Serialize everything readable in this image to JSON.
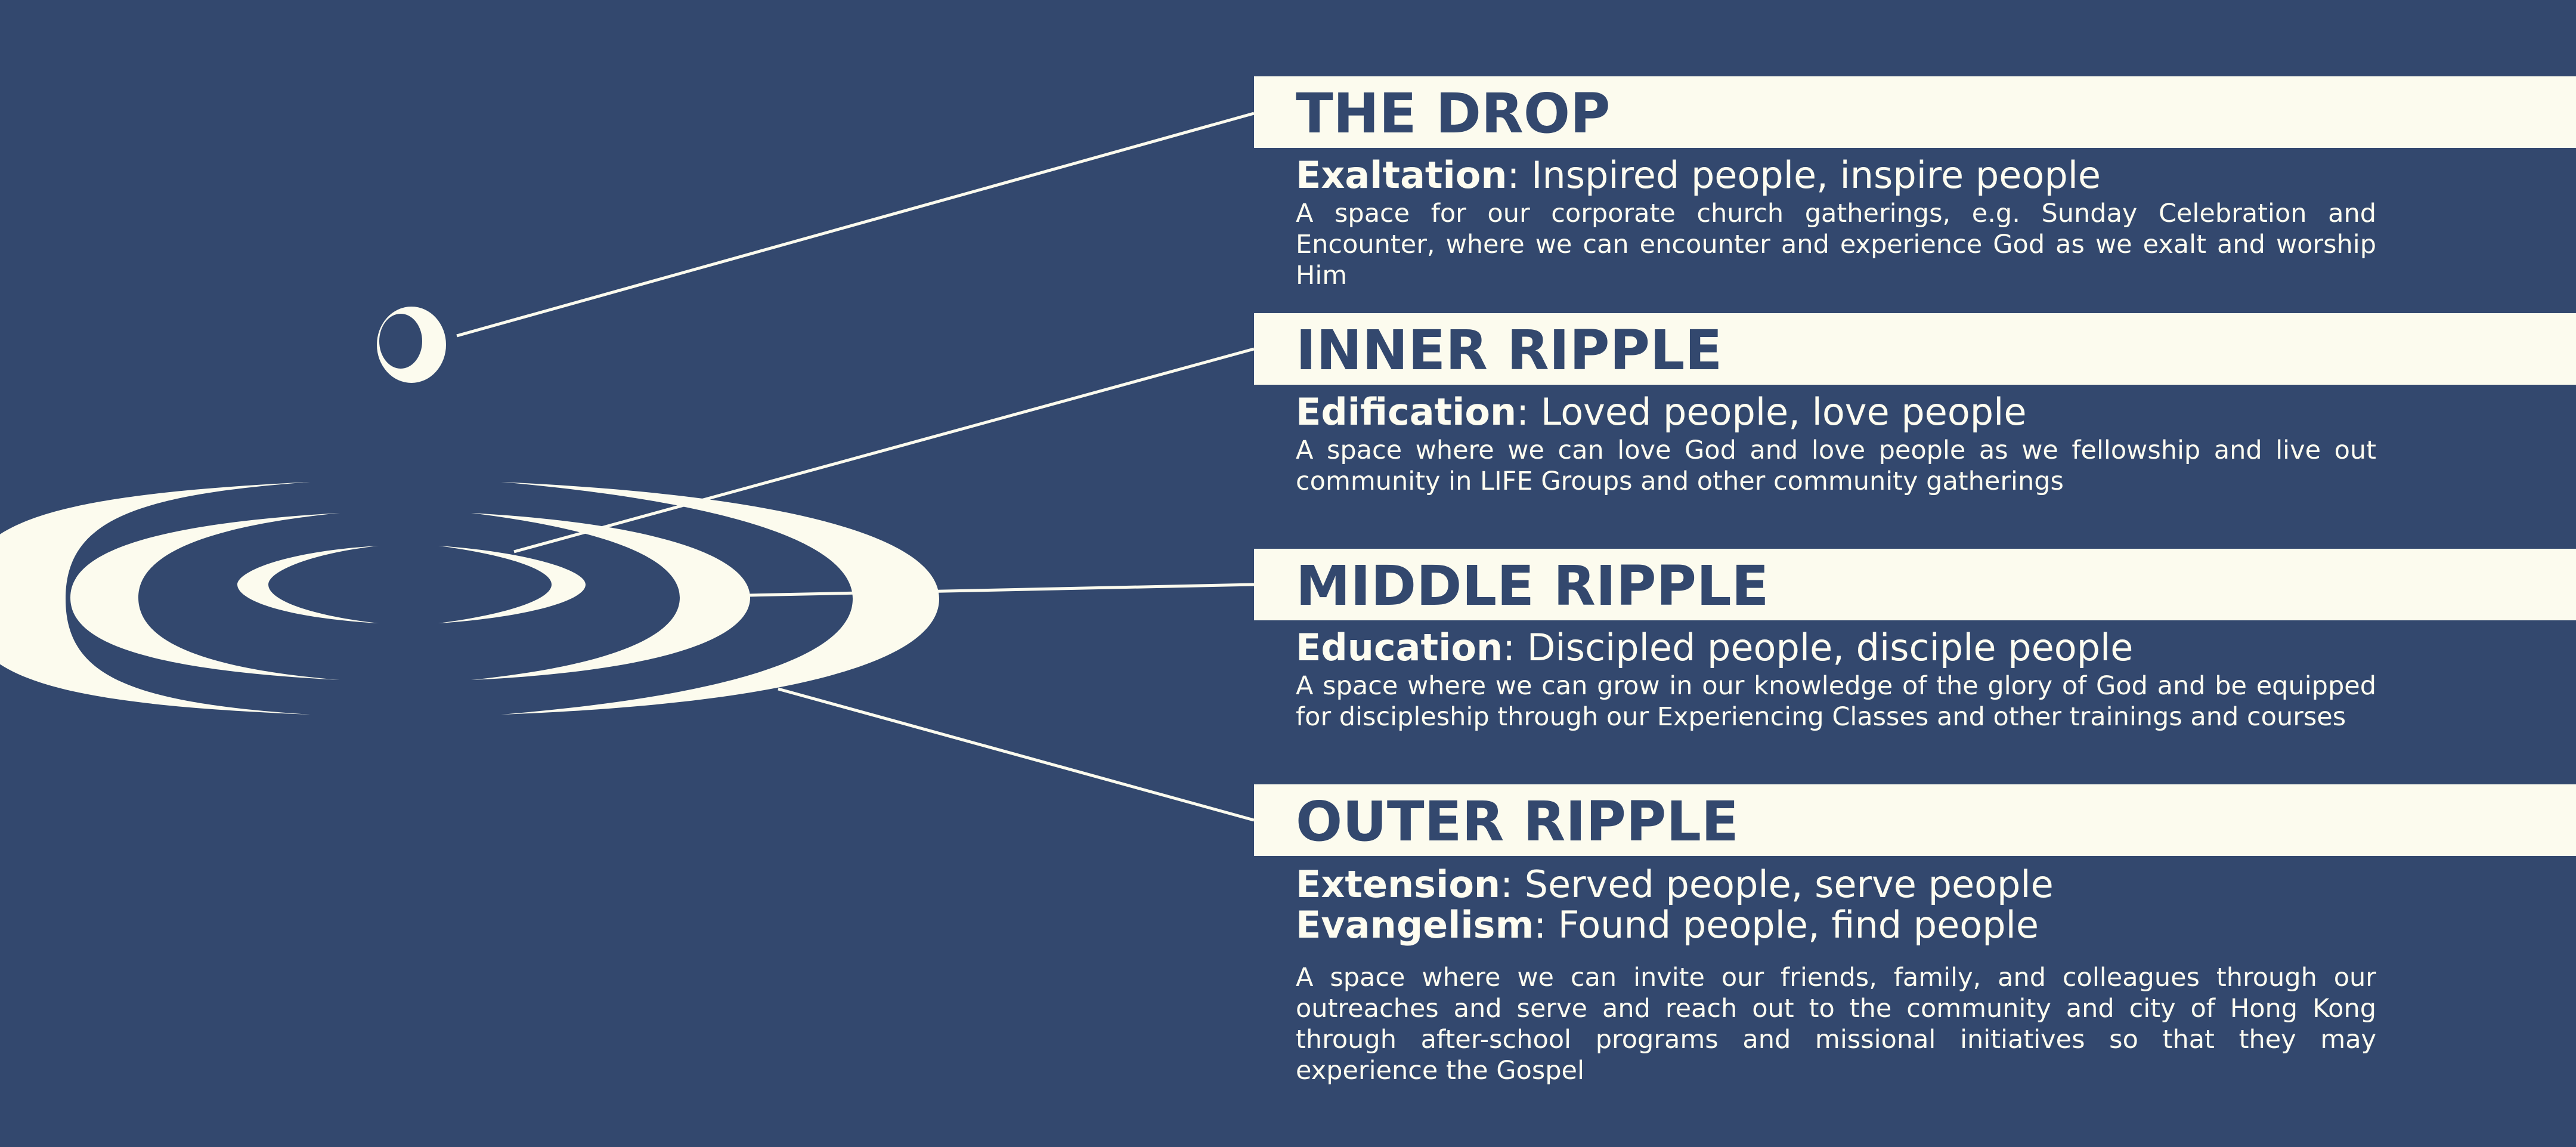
{
  "colors": {
    "background": "#33486e",
    "cream": "#fcfbee"
  },
  "sections": [
    {
      "title": "THE DROP",
      "mottos": [
        {
          "keyword": "Exaltation",
          "text": ": Inspired people, inspire people"
        }
      ],
      "description": "A space for our corporate church gatherings, e.g. Sunday Celebration and Encounter, where we can encounter and experience God as we exalt and worship Him"
    },
    {
      "title": "INNER RIPPLE",
      "mottos": [
        {
          "keyword": "Edification",
          "text": ": Loved people, love people"
        }
      ],
      "description": "A space where we can love God and love people as we fellowship and live out community in LIFE Groups and other community gatherings"
    },
    {
      "title": "MIDDLE RIPPLE",
      "mottos": [
        {
          "keyword": "Education",
          "text": ": Discipled people, disciple people"
        }
      ],
      "description": "A space where we can grow in our knowledge of the glory of God and be equipped for discipleship through our Experiencing Classes and other trainings and courses"
    },
    {
      "title": "OUTER RIPPLE",
      "mottos": [
        {
          "keyword": "Extension",
          "text": ": Served people, serve people"
        },
        {
          "keyword": "Evangelism",
          "text": ": Found people, find people"
        }
      ],
      "description": "A space where we can invite our friends, family, and colleagues through our outreaches and serve and reach out to the community and city of Hong Kong through after-school programs and missional initiatives so that they may experience the Gospel"
    }
  ]
}
